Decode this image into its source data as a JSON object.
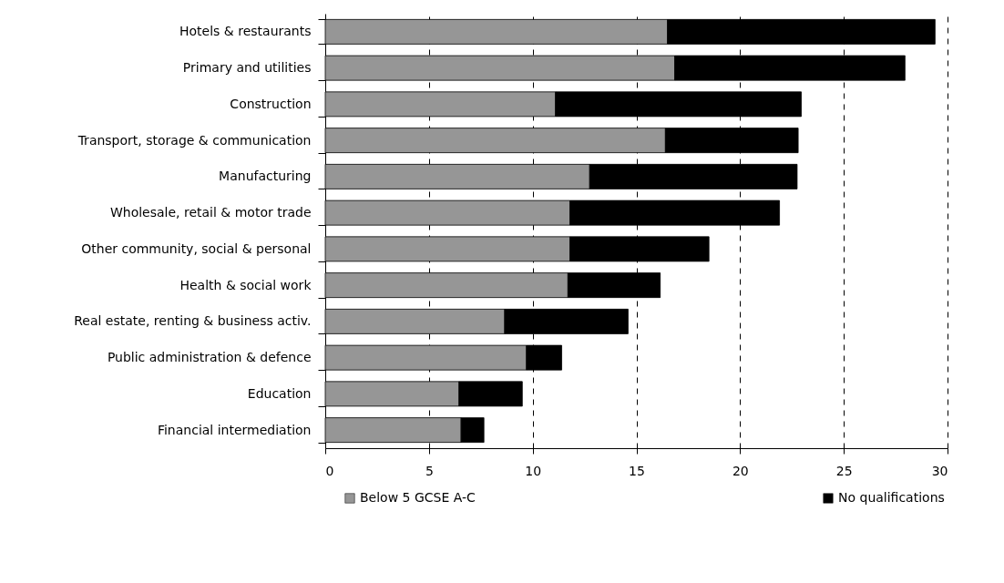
{
  "chart_data": {
    "type": "bar",
    "orientation": "horizontal",
    "stacked": true,
    "categories": [
      "Hotels & restaurants",
      "Primary and utilities",
      "Construction",
      "Transport, storage & communication",
      "Manufacturing",
      "Wholesale, retail & motor trade",
      "Other community, social & personal",
      "Health & social work",
      "Real estate, renting & business activ.",
      "Public administration & defence",
      "Education",
      "Financial intermediation"
    ],
    "series": [
      {
        "name": "Below 5 GCSE A-C",
        "color": "#969696",
        "values": [
          16.5,
          16.85,
          11.1,
          16.4,
          12.75,
          11.8,
          11.8,
          11.7,
          8.65,
          9.7,
          6.45,
          6.55
        ]
      },
      {
        "name": "No qualifications",
        "color": "#000000",
        "values": [
          12.9,
          11.1,
          11.85,
          6.4,
          10.0,
          10.1,
          6.7,
          4.45,
          5.95,
          1.7,
          3.05,
          1.1
        ]
      }
    ],
    "xlim": [
      0,
      30
    ],
    "xticks": [
      0,
      5,
      10,
      15,
      20,
      25,
      30
    ],
    "grid": "x",
    "legend": "bottom"
  }
}
